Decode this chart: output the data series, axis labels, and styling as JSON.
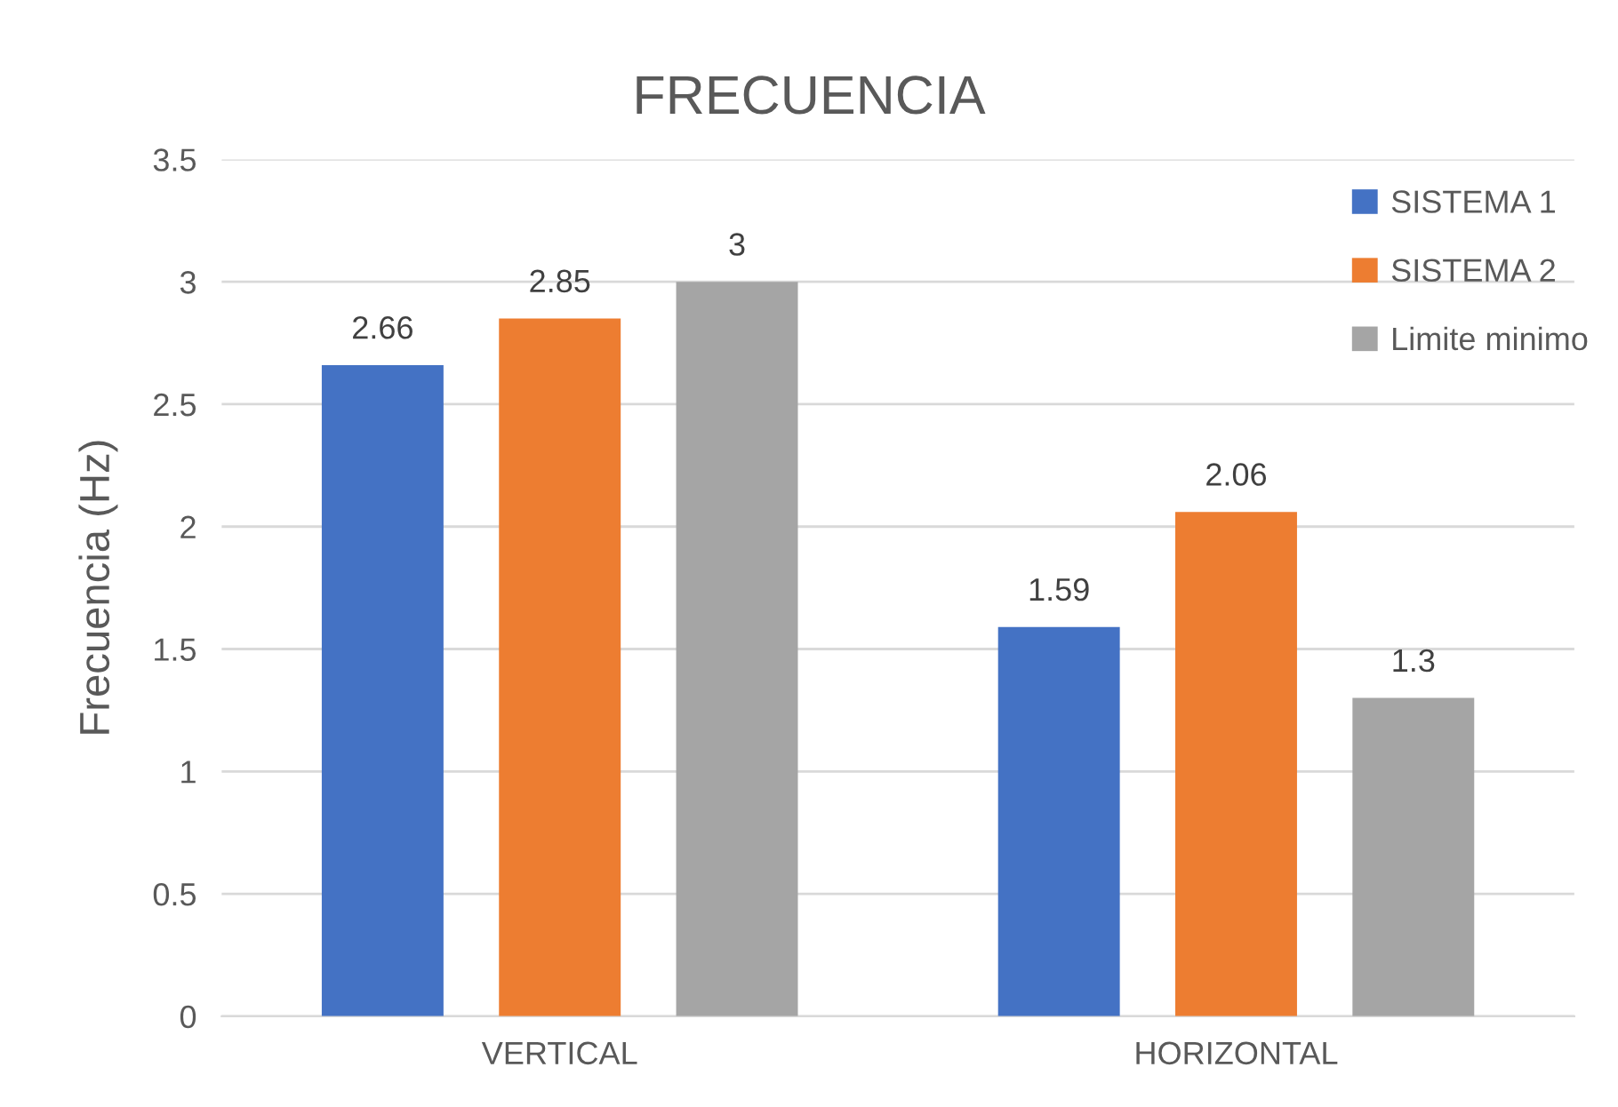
{
  "chart_data": {
    "type": "bar",
    "title": "FRECUENCIA",
    "ylabel": "Frecuencia (Hz)",
    "categories": [
      "VERTICAL",
      "HORIZONTAL"
    ],
    "series": [
      {
        "name": "SISTEMA 1",
        "color": "#4472c4",
        "values": [
          2.66,
          1.59
        ]
      },
      {
        "name": "SISTEMA 2",
        "color": "#ed7d31",
        "values": [
          2.85,
          2.06
        ]
      },
      {
        "name": "Limite minimo",
        "color": "#a5a5a5",
        "values": [
          3,
          1.3
        ]
      }
    ],
    "ylim": [
      0,
      3.5
    ],
    "yticks": [
      0,
      0.5,
      1,
      1.5,
      2,
      2.5,
      3,
      3.5
    ],
    "grid": "y",
    "legend": "top right",
    "data_labels": true
  }
}
